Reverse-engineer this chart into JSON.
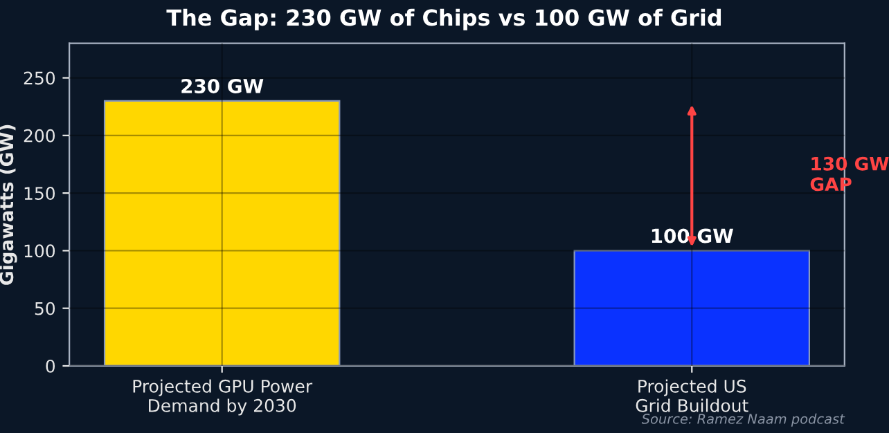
{
  "chart_data": {
    "type": "bar",
    "title": "The Gap: 230 GW of Chips vs 100 GW of Grid",
    "ylabel": "Gigawatts (GW)",
    "categories": [
      "Projected GPU Power\nDemand by 2030",
      "Projected US\nGrid Buildout"
    ],
    "values": [
      230,
      100
    ],
    "colors": [
      "#ffd700",
      "#0a32ff"
    ],
    "value_labels": [
      "230 GW",
      "100 GW"
    ],
    "ylim": [
      0,
      280
    ],
    "yticks": [
      0,
      50,
      100,
      150,
      200,
      250
    ],
    "grid": true,
    "annotations": [
      "130 GW\nGAP",
      "Source: Ramez Naam podcast"
    ]
  }
}
